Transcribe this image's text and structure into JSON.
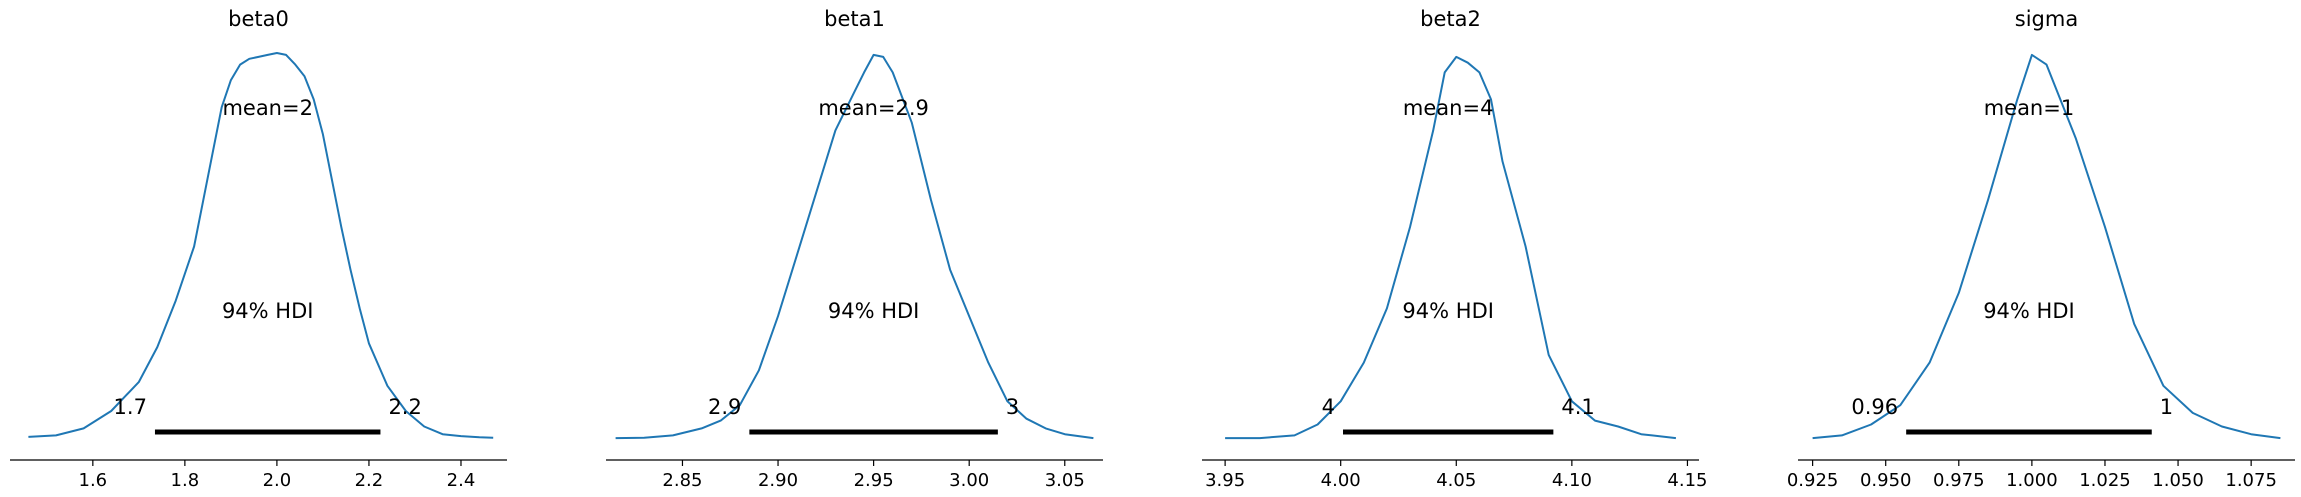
{
  "chart_data": [
    {
      "type": "density",
      "title": "beta0",
      "mean_label": "mean=2",
      "hdi_label": "94% HDI",
      "hdi_low_label": "1.7",
      "hdi_high_label": "2.2",
      "hdi": [
        1.735,
        2.225
      ],
      "xlim": [
        1.42,
        2.5
      ],
      "ticks": [
        1.6,
        1.8,
        2.0,
        2.2,
        2.4
      ],
      "tick_labels": [
        "1.6",
        "1.8",
        "2.0",
        "2.2",
        "2.4"
      ],
      "density": [
        [
          1.46,
          0.008
        ],
        [
          1.52,
          0.012
        ],
        [
          1.58,
          0.03
        ],
        [
          1.64,
          0.075
        ],
        [
          1.7,
          0.15
        ],
        [
          1.74,
          0.24
        ],
        [
          1.78,
          0.36
        ],
        [
          1.82,
          0.5
        ],
        [
          1.84,
          0.62
        ],
        [
          1.86,
          0.74
        ],
        [
          1.88,
          0.86
        ],
        [
          1.9,
          0.93
        ],
        [
          1.92,
          0.97
        ],
        [
          1.94,
          0.985
        ],
        [
          1.96,
          0.99
        ],
        [
          1.98,
          0.995
        ],
        [
          2.0,
          1.0
        ],
        [
          2.02,
          0.995
        ],
        [
          2.04,
          0.97
        ],
        [
          2.06,
          0.94
        ],
        [
          2.08,
          0.88
        ],
        [
          2.1,
          0.79
        ],
        [
          2.12,
          0.67
        ],
        [
          2.14,
          0.55
        ],
        [
          2.16,
          0.44
        ],
        [
          2.18,
          0.34
        ],
        [
          2.2,
          0.25
        ],
        [
          2.24,
          0.14
        ],
        [
          2.28,
          0.075
        ],
        [
          2.32,
          0.035
        ],
        [
          2.36,
          0.015
        ],
        [
          2.4,
          0.01
        ],
        [
          2.44,
          0.007
        ],
        [
          2.47,
          0.006
        ]
      ]
    },
    {
      "type": "density",
      "title": "beta1",
      "mean_label": "mean=2.9",
      "hdi_label": "94% HDI",
      "hdi_low_label": "2.9",
      "hdi_high_label": "3",
      "hdi": [
        2.885,
        3.015
      ],
      "xlim": [
        2.81,
        3.07
      ],
      "ticks": [
        2.85,
        2.9,
        2.95,
        3.0,
        3.05
      ],
      "tick_labels": [
        "2.85",
        "2.90",
        "2.95",
        "3.00",
        "3.05"
      ],
      "density": [
        [
          2.815,
          0.005
        ],
        [
          2.83,
          0.006
        ],
        [
          2.845,
          0.012
        ],
        [
          2.86,
          0.03
        ],
        [
          2.87,
          0.05
        ],
        [
          2.88,
          0.09
        ],
        [
          2.89,
          0.18
        ],
        [
          2.9,
          0.32
        ],
        [
          2.91,
          0.48
        ],
        [
          2.92,
          0.64
        ],
        [
          2.93,
          0.8
        ],
        [
          2.94,
          0.9
        ],
        [
          2.945,
          0.95
        ],
        [
          2.95,
          0.995
        ],
        [
          2.955,
          0.99
        ],
        [
          2.96,
          0.95
        ],
        [
          2.97,
          0.82
        ],
        [
          2.98,
          0.62
        ],
        [
          2.99,
          0.44
        ],
        [
          3.0,
          0.32
        ],
        [
          3.01,
          0.2
        ],
        [
          3.02,
          0.1
        ],
        [
          3.03,
          0.055
        ],
        [
          3.04,
          0.03
        ],
        [
          3.05,
          0.015
        ],
        [
          3.065,
          0.005
        ]
      ]
    },
    {
      "type": "density",
      "title": "beta2",
      "mean_label": "mean=4",
      "hdi_label": "94% HDI",
      "hdi_low_label": "4",
      "hdi_high_label": "4.1",
      "hdi": [
        4.001,
        4.092
      ],
      "xlim": [
        3.94,
        4.155
      ],
      "ticks": [
        3.95,
        4.0,
        4.05,
        4.1,
        4.15
      ],
      "tick_labels": [
        "3.95",
        "4.00",
        "4.05",
        "4.10",
        "4.15"
      ],
      "density": [
        [
          3.95,
          0.005
        ],
        [
          3.965,
          0.005
        ],
        [
          3.98,
          0.012
        ],
        [
          3.99,
          0.04
        ],
        [
          4.0,
          0.1
        ],
        [
          4.01,
          0.2
        ],
        [
          4.02,
          0.34
        ],
        [
          4.03,
          0.55
        ],
        [
          4.04,
          0.8
        ],
        [
          4.045,
          0.95
        ],
        [
          4.05,
          0.99
        ],
        [
          4.055,
          0.975
        ],
        [
          4.06,
          0.95
        ],
        [
          4.065,
          0.88
        ],
        [
          4.07,
          0.72
        ],
        [
          4.08,
          0.5
        ],
        [
          4.09,
          0.22
        ],
        [
          4.1,
          0.1
        ],
        [
          4.11,
          0.05
        ],
        [
          4.12,
          0.035
        ],
        [
          4.13,
          0.015
        ],
        [
          4.145,
          0.005
        ]
      ]
    },
    {
      "type": "density",
      "title": "sigma",
      "mean_label": "mean=1",
      "hdi_label": "94% HDI",
      "hdi_low_label": "0.96",
      "hdi_high_label": "1",
      "hdi": [
        0.957,
        1.041
      ],
      "xlim": [
        0.92,
        1.09
      ],
      "ticks": [
        0.925,
        0.95,
        0.975,
        1.0,
        1.025,
        1.05,
        1.075
      ],
      "tick_labels": [
        "0.925",
        "0.950",
        "0.975",
        "1.000",
        "1.025",
        "1.050",
        "1.075"
      ],
      "density": [
        [
          0.925,
          0.005
        ],
        [
          0.935,
          0.012
        ],
        [
          0.945,
          0.04
        ],
        [
          0.955,
          0.09
        ],
        [
          0.965,
          0.2
        ],
        [
          0.975,
          0.38
        ],
        [
          0.985,
          0.62
        ],
        [
          0.995,
          0.88
        ],
        [
          1.0,
          0.995
        ],
        [
          1.005,
          0.97
        ],
        [
          1.015,
          0.78
        ],
        [
          1.025,
          0.55
        ],
        [
          1.035,
          0.3
        ],
        [
          1.045,
          0.14
        ],
        [
          1.055,
          0.07
        ],
        [
          1.065,
          0.035
        ],
        [
          1.075,
          0.015
        ],
        [
          1.085,
          0.005
        ]
      ]
    }
  ],
  "colors": {
    "curve": "#1f77b4",
    "hdi_bar": "#000000",
    "axis": "#000000"
  }
}
